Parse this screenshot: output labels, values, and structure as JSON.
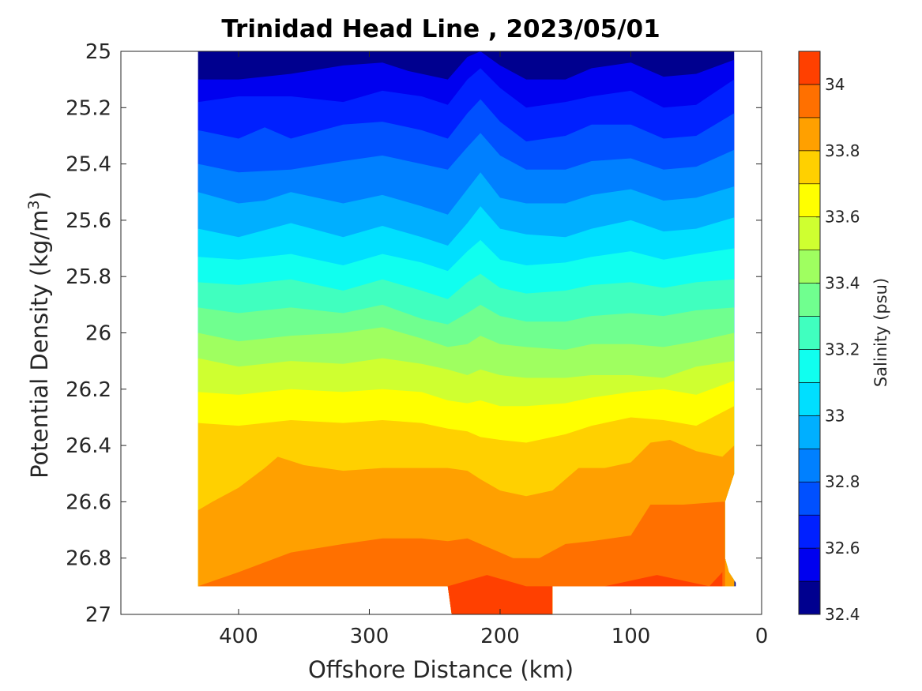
{
  "chart_data": {
    "type": "contour",
    "title": "Trinidad Head Line , 2023/05/01",
    "xlabel": "Offshore Distance (km)",
    "ylabel": "Potential Density (kg/m",
    "ylabel_sup": "3",
    "ylabel_close": ")",
    "xlim": [
      490,
      0
    ],
    "ylim": [
      25,
      27
    ],
    "x_reversed": true,
    "y_reversed": true,
    "xticks": [
      400,
      300,
      200,
      100,
      0
    ],
    "yticks": [
      25,
      25.2,
      25.4,
      25.6,
      25.8,
      26,
      26.2,
      26.4,
      26.6,
      26.8,
      27
    ],
    "colorbar": {
      "label": "Salinity (psu)",
      "range": [
        32.4,
        34.1
      ],
      "levels": [
        32.4,
        32.5,
        32.6,
        32.7,
        32.8,
        32.9,
        33.0,
        33.1,
        33.2,
        33.3,
        33.4,
        33.5,
        33.6,
        33.7,
        33.8,
        33.9,
        34.0,
        34.1
      ],
      "tick_values": [
        32.4,
        32.6,
        32.8,
        33,
        33.2,
        33.4,
        33.6,
        33.8,
        34
      ],
      "tick_labels": [
        "32.4",
        "32.6",
        "32.8",
        "33",
        "33.2",
        "33.4",
        "33.6",
        "33.8",
        "34"
      ],
      "colors": [
        "#00008f",
        "#0000bf",
        "#0000ef",
        "#0020ff",
        "#0050ff",
        "#0080ff",
        "#00afff",
        "#00dfff",
        "#10ffef",
        "#40ffbf",
        "#70ff8f",
        "#9fff60",
        "#cfff30",
        "#ffff00",
        "#ffd000",
        "#ffa000",
        "#ff7000",
        "#ff4000",
        "#ff1000",
        "#df0000",
        "#af0000",
        "#800000"
      ]
    },
    "data_extent": {
      "x": [
        21,
        431
      ],
      "y": [
        25,
        26.9
      ]
    },
    "boundaries": [
      {
        "salinity": 32.6,
        "density": [
          [
            431,
            25.1
          ],
          [
            400,
            25.1
          ],
          [
            360,
            25.08
          ],
          [
            320,
            25.05
          ],
          [
            290,
            25.04
          ],
          [
            270,
            25.07
          ],
          [
            240,
            25.1
          ],
          [
            225,
            25.02
          ],
          [
            215,
            25.0
          ],
          [
            200,
            25.05
          ],
          [
            180,
            25.1
          ],
          [
            150,
            25.1
          ],
          [
            130,
            25.06
          ],
          [
            100,
            25.04
          ],
          [
            75,
            25.09
          ],
          [
            50,
            25.08
          ],
          [
            21,
            25.03
          ]
        ]
      },
      {
        "salinity": 32.7,
        "density": [
          [
            431,
            25.18
          ],
          [
            400,
            25.16
          ],
          [
            360,
            25.16
          ],
          [
            320,
            25.18
          ],
          [
            290,
            25.14
          ],
          [
            260,
            25.16
          ],
          [
            240,
            25.19
          ],
          [
            225,
            25.1
          ],
          [
            215,
            25.06
          ],
          [
            200,
            25.13
          ],
          [
            180,
            25.2
          ],
          [
            150,
            25.18
          ],
          [
            130,
            25.16
          ],
          [
            100,
            25.14
          ],
          [
            75,
            25.2
          ],
          [
            50,
            25.19
          ],
          [
            21,
            25.1
          ]
        ]
      },
      {
        "salinity": 32.8,
        "density": [
          [
            431,
            25.28
          ],
          [
            400,
            25.31
          ],
          [
            380,
            25.27
          ],
          [
            360,
            25.31
          ],
          [
            320,
            25.26
          ],
          [
            290,
            25.25
          ],
          [
            260,
            25.28
          ],
          [
            240,
            25.31
          ],
          [
            225,
            25.22
          ],
          [
            215,
            25.17
          ],
          [
            200,
            25.25
          ],
          [
            180,
            25.32
          ],
          [
            150,
            25.3
          ],
          [
            130,
            25.26
          ],
          [
            100,
            25.26
          ],
          [
            75,
            25.31
          ],
          [
            50,
            25.3
          ],
          [
            21,
            25.22
          ]
        ]
      },
      {
        "salinity": 32.9,
        "density": [
          [
            431,
            25.4
          ],
          [
            400,
            25.43
          ],
          [
            360,
            25.42
          ],
          [
            320,
            25.39
          ],
          [
            290,
            25.37
          ],
          [
            260,
            25.4
          ],
          [
            240,
            25.42
          ],
          [
            225,
            25.34
          ],
          [
            215,
            25.29
          ],
          [
            200,
            25.37
          ],
          [
            180,
            25.42
          ],
          [
            150,
            25.42
          ],
          [
            130,
            25.39
          ],
          [
            100,
            25.38
          ],
          [
            75,
            25.42
          ],
          [
            50,
            25.41
          ],
          [
            21,
            25.35
          ]
        ]
      },
      {
        "salinity": 33.0,
        "density": [
          [
            431,
            25.5
          ],
          [
            400,
            25.54
          ],
          [
            380,
            25.53
          ],
          [
            360,
            25.5
          ],
          [
            320,
            25.54
          ],
          [
            290,
            25.51
          ],
          [
            260,
            25.55
          ],
          [
            240,
            25.58
          ],
          [
            225,
            25.49
          ],
          [
            215,
            25.43
          ],
          [
            200,
            25.52
          ],
          [
            180,
            25.54
          ],
          [
            150,
            25.54
          ],
          [
            130,
            25.51
          ],
          [
            100,
            25.49
          ],
          [
            75,
            25.53
          ],
          [
            50,
            25.52
          ],
          [
            21,
            25.48
          ]
        ]
      },
      {
        "salinity": 33.1,
        "density": [
          [
            431,
            25.63
          ],
          [
            400,
            25.66
          ],
          [
            360,
            25.61
          ],
          [
            320,
            25.66
          ],
          [
            290,
            25.62
          ],
          [
            260,
            25.66
          ],
          [
            240,
            25.69
          ],
          [
            225,
            25.61
          ],
          [
            215,
            25.55
          ],
          [
            200,
            25.63
          ],
          [
            180,
            25.65
          ],
          [
            150,
            25.66
          ],
          [
            130,
            25.63
          ],
          [
            100,
            25.6
          ],
          [
            75,
            25.64
          ],
          [
            50,
            25.63
          ],
          [
            21,
            25.59
          ]
        ]
      },
      {
        "salinity": 33.2,
        "density": [
          [
            431,
            25.73
          ],
          [
            400,
            25.74
          ],
          [
            360,
            25.72
          ],
          [
            320,
            25.76
          ],
          [
            290,
            25.72
          ],
          [
            260,
            25.75
          ],
          [
            240,
            25.78
          ],
          [
            225,
            25.71
          ],
          [
            215,
            25.67
          ],
          [
            200,
            25.74
          ],
          [
            180,
            25.76
          ],
          [
            150,
            25.75
          ],
          [
            130,
            25.73
          ],
          [
            100,
            25.71
          ],
          [
            75,
            25.74
          ],
          [
            50,
            25.72
          ],
          [
            21,
            25.7
          ]
        ]
      },
      {
        "salinity": 33.3,
        "density": [
          [
            431,
            25.82
          ],
          [
            400,
            25.83
          ],
          [
            360,
            25.81
          ],
          [
            320,
            25.85
          ],
          [
            290,
            25.81
          ],
          [
            260,
            25.85
          ],
          [
            240,
            25.88
          ],
          [
            225,
            25.82
          ],
          [
            215,
            25.79
          ],
          [
            200,
            25.84
          ],
          [
            180,
            25.86
          ],
          [
            150,
            25.85
          ],
          [
            130,
            25.83
          ],
          [
            100,
            25.82
          ],
          [
            75,
            25.84
          ],
          [
            50,
            25.82
          ],
          [
            21,
            25.81
          ]
        ]
      },
      {
        "salinity": 33.4,
        "density": [
          [
            431,
            25.91
          ],
          [
            400,
            25.93
          ],
          [
            360,
            25.91
          ],
          [
            320,
            25.93
          ],
          [
            290,
            25.9
          ],
          [
            260,
            25.95
          ],
          [
            240,
            25.97
          ],
          [
            225,
            25.93
          ],
          [
            215,
            25.9
          ],
          [
            200,
            25.94
          ],
          [
            180,
            25.96
          ],
          [
            150,
            25.96
          ],
          [
            130,
            25.94
          ],
          [
            100,
            25.93
          ],
          [
            75,
            25.94
          ],
          [
            50,
            25.92
          ],
          [
            21,
            25.91
          ]
        ]
      },
      {
        "salinity": 33.5,
        "density": [
          [
            431,
            26.0
          ],
          [
            400,
            26.03
          ],
          [
            360,
            26.01
          ],
          [
            320,
            26.0
          ],
          [
            290,
            25.98
          ],
          [
            260,
            26.02
          ],
          [
            240,
            26.05
          ],
          [
            225,
            26.04
          ],
          [
            215,
            26.01
          ],
          [
            200,
            26.04
          ],
          [
            180,
            26.05
          ],
          [
            150,
            26.06
          ],
          [
            130,
            26.04
          ],
          [
            100,
            26.04
          ],
          [
            75,
            26.05
          ],
          [
            50,
            26.03
          ],
          [
            21,
            26.0
          ]
        ]
      },
      {
        "salinity": 33.6,
        "density": [
          [
            431,
            26.09
          ],
          [
            400,
            26.12
          ],
          [
            360,
            26.1
          ],
          [
            320,
            26.11
          ],
          [
            290,
            26.09
          ],
          [
            260,
            26.11
          ],
          [
            240,
            26.13
          ],
          [
            225,
            26.15
          ],
          [
            215,
            26.13
          ],
          [
            200,
            26.15
          ],
          [
            180,
            26.16
          ],
          [
            150,
            26.16
          ],
          [
            130,
            26.15
          ],
          [
            100,
            26.15
          ],
          [
            75,
            26.16
          ],
          [
            50,
            26.12
          ],
          [
            21,
            26.1
          ]
        ]
      },
      {
        "salinity": 33.7,
        "density": [
          [
            431,
            26.21
          ],
          [
            400,
            26.22
          ],
          [
            360,
            26.2
          ],
          [
            320,
            26.21
          ],
          [
            290,
            26.2
          ],
          [
            260,
            26.21
          ],
          [
            240,
            26.24
          ],
          [
            225,
            26.25
          ],
          [
            215,
            26.24
          ],
          [
            200,
            26.26
          ],
          [
            180,
            26.26
          ],
          [
            150,
            26.25
          ],
          [
            130,
            26.23
          ],
          [
            100,
            26.21
          ],
          [
            75,
            26.2
          ],
          [
            50,
            26.22
          ],
          [
            21,
            26.17
          ]
        ]
      },
      {
        "salinity": 33.8,
        "density": [
          [
            431,
            26.32
          ],
          [
            400,
            26.33
          ],
          [
            360,
            26.31
          ],
          [
            320,
            26.32
          ],
          [
            290,
            26.31
          ],
          [
            260,
            26.32
          ],
          [
            240,
            26.34
          ],
          [
            225,
            26.35
          ],
          [
            215,
            26.37
          ],
          [
            200,
            26.38
          ],
          [
            180,
            26.39
          ],
          [
            150,
            26.36
          ],
          [
            130,
            26.33
          ],
          [
            100,
            26.3
          ],
          [
            75,
            26.31
          ],
          [
            50,
            26.33
          ],
          [
            21,
            26.26
          ]
        ]
      },
      {
        "salinity": 33.9,
        "density": [
          [
            431,
            26.63
          ],
          [
            420,
            26.6
          ],
          [
            400,
            26.55
          ],
          [
            380,
            26.48
          ],
          [
            370,
            26.44
          ],
          [
            350,
            26.47
          ],
          [
            320,
            26.49
          ],
          [
            290,
            26.48
          ],
          [
            260,
            26.48
          ],
          [
            240,
            26.48
          ],
          [
            225,
            26.49
          ],
          [
            215,
            26.52
          ],
          [
            200,
            26.56
          ],
          [
            180,
            26.58
          ],
          [
            160,
            26.56
          ],
          [
            140,
            26.48
          ],
          [
            120,
            26.48
          ],
          [
            100,
            26.46
          ],
          [
            85,
            26.39
          ],
          [
            70,
            26.38
          ],
          [
            50,
            26.42
          ],
          [
            30,
            26.44
          ],
          [
            21,
            26.4
          ]
        ]
      },
      {
        "salinity": 34.0,
        "density": [
          [
            431,
            26.9
          ],
          [
            400,
            26.85
          ],
          [
            360,
            26.78
          ],
          [
            320,
            26.75
          ],
          [
            290,
            26.73
          ],
          [
            260,
            26.73
          ],
          [
            240,
            26.74
          ],
          [
            225,
            26.73
          ],
          [
            210,
            26.76
          ],
          [
            190,
            26.8
          ],
          [
            170,
            26.8
          ],
          [
            150,
            26.75
          ],
          [
            130,
            26.74
          ],
          [
            100,
            26.72
          ],
          [
            85,
            26.61
          ],
          [
            60,
            26.61
          ],
          [
            30,
            26.6
          ],
          [
            28,
            26.6
          ]
        ]
      },
      {
        "salinity": 34.1,
        "density": [
          [
            240,
            26.9
          ],
          [
            210,
            26.86
          ],
          [
            180,
            26.9
          ],
          [
            120,
            26.9
          ],
          [
            100,
            26.88
          ],
          [
            90,
            26.87
          ],
          [
            80,
            26.86
          ],
          [
            60,
            26.88
          ],
          [
            40,
            26.9
          ],
          [
            30,
            26.85
          ]
        ]
      }
    ]
  }
}
